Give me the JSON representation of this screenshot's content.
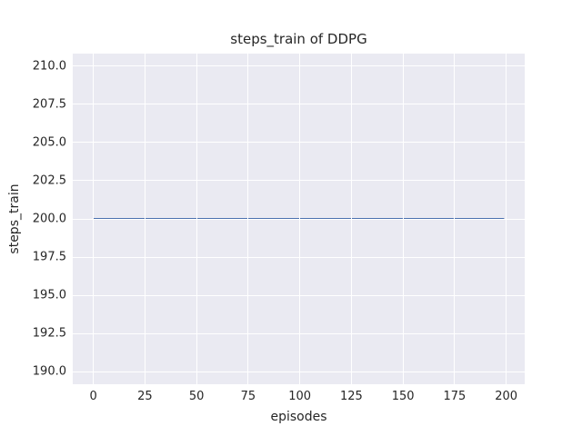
{
  "chart_data": {
    "type": "line",
    "title": "steps_train of DDPG",
    "xlabel": "episodes",
    "ylabel": "steps_train",
    "xlim": [
      -9.95,
      208.95
    ],
    "ylim": [
      189.17,
      210.83
    ],
    "grid": true,
    "legend": false,
    "x_ticks": [
      {
        "value": 0,
        "label": "0"
      },
      {
        "value": 25,
        "label": "25"
      },
      {
        "value": 50,
        "label": "50"
      },
      {
        "value": 75,
        "label": "75"
      },
      {
        "value": 100,
        "label": "100"
      },
      {
        "value": 125,
        "label": "125"
      },
      {
        "value": 150,
        "label": "150"
      },
      {
        "value": 175,
        "label": "175"
      },
      {
        "value": 200,
        "label": "200"
      }
    ],
    "y_ticks": [
      {
        "value": 190.0,
        "label": "190.0"
      },
      {
        "value": 192.5,
        "label": "192.5"
      },
      {
        "value": 195.0,
        "label": "195.0"
      },
      {
        "value": 197.5,
        "label": "197.5"
      },
      {
        "value": 200.0,
        "label": "200.0"
      },
      {
        "value": 202.5,
        "label": "202.5"
      },
      {
        "value": 205.0,
        "label": "205.0"
      },
      {
        "value": 207.5,
        "label": "207.5"
      },
      {
        "value": 210.0,
        "label": "210.0"
      }
    ],
    "series": [
      {
        "name": "steps_train",
        "x": [
          0,
          199
        ],
        "y": [
          200,
          200
        ],
        "line_width": 2
      }
    ],
    "colors": {
      "figure_bg": "#ffffff",
      "plot_bg": "#eaeaf2",
      "grid": "#ffffff",
      "text": "#262626",
      "line": "#4c72b0"
    }
  }
}
